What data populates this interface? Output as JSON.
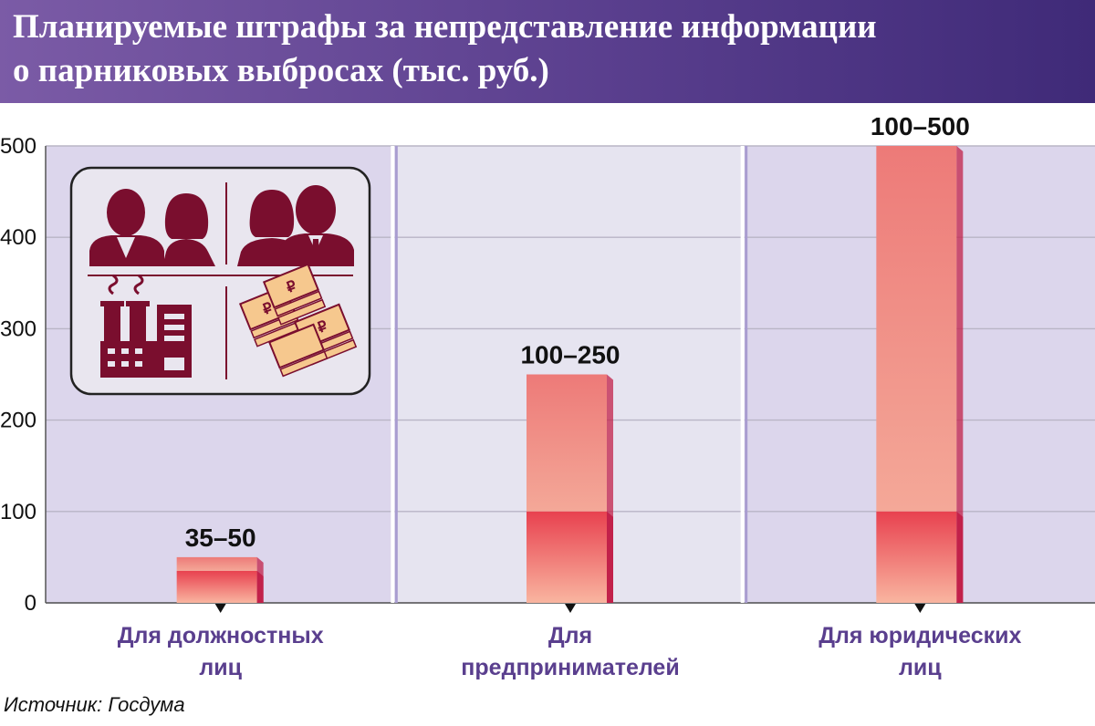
{
  "header": {
    "title_line1": "Планируемые штрафы за непредставление информации",
    "title_line2": "о парниковых выбросах (тыс. руб.)",
    "bg_color_start": "#7b5ba6",
    "bg_color_end": "#3f2a78"
  },
  "chart_data": {
    "type": "bar",
    "title": "Планируемые штрафы за непредставление информации о парниковых выбросах (тыс. руб.)",
    "ylim": [
      0,
      500
    ],
    "yticks": [
      0,
      100,
      200,
      300,
      400,
      500
    ],
    "tick_labels": [
      "0",
      "100",
      "200",
      "300",
      "400",
      "500"
    ],
    "grid": true,
    "categories": [
      {
        "line1": "Для должностных",
        "line2": "лиц"
      },
      {
        "line1": "Для",
        "line2": "предпринимателей"
      },
      {
        "line1": "Для юридических",
        "line2": "лиц"
      }
    ],
    "series": [
      {
        "name": "min",
        "values": [
          35,
          100,
          100
        ]
      },
      {
        "name": "max",
        "values": [
          50,
          250,
          500
        ]
      }
    ],
    "range_labels": [
      "35–50",
      "100–250",
      "100–500"
    ],
    "colors": {
      "bar_min_top": "#e8414f",
      "bar_min_bottom": "#f9b5a0",
      "bar_range_top": "#ed7a78",
      "bar_range_bottom": "#f4a898",
      "bar_side": "#c2214a",
      "category_label": "#5a3f8e",
      "panel_a": "#dcd6ec",
      "panel_b": "#e6e4f0",
      "divider": "#a99dd0"
    }
  },
  "icons": [
    "officials-icon",
    "businesspeople-icon",
    "factory-icon",
    "money-stack-icon"
  ],
  "icon_colors": {
    "figure": "#7a0e2e",
    "money": "#f6c88e"
  },
  "source": "Источник: Госдума"
}
